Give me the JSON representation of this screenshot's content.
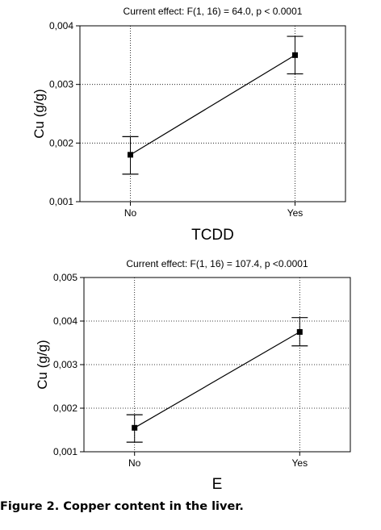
{
  "chart_data": [
    {
      "type": "line",
      "title": "Current effect: F(1, 16) = 64.0, p < 0.0001",
      "xlabel": "TCDD",
      "ylabel": "Cu (g/g)",
      "categories": [
        "No",
        "Yes"
      ],
      "yticks": [
        "0,001",
        "0,002",
        "0,003",
        "0,004"
      ],
      "ylim": [
        0.001,
        0.004
      ],
      "grid": true,
      "series": [
        {
          "values": [
            0.0018,
            0.0035
          ],
          "error_low": [
            0.00147,
            0.00318
          ],
          "error_high": [
            0.00211,
            0.00382
          ]
        }
      ]
    },
    {
      "type": "line",
      "title": "Current effect: F(1, 16) = 107.4, p <0.0001",
      "xlabel": "E",
      "ylabel": "Cu (g/g)",
      "categories": [
        "No",
        "Yes"
      ],
      "yticks": [
        "0,001",
        "0,002",
        "0,003",
        "0,004",
        "0,005"
      ],
      "ylim": [
        0.001,
        0.005
      ],
      "grid": true,
      "series": [
        {
          "values": [
            0.00155,
            0.00375
          ],
          "error_low": [
            0.00122,
            0.00343
          ],
          "error_high": [
            0.00185,
            0.00408
          ]
        }
      ]
    }
  ],
  "caption": "Figure 2. Copper content in the liver."
}
